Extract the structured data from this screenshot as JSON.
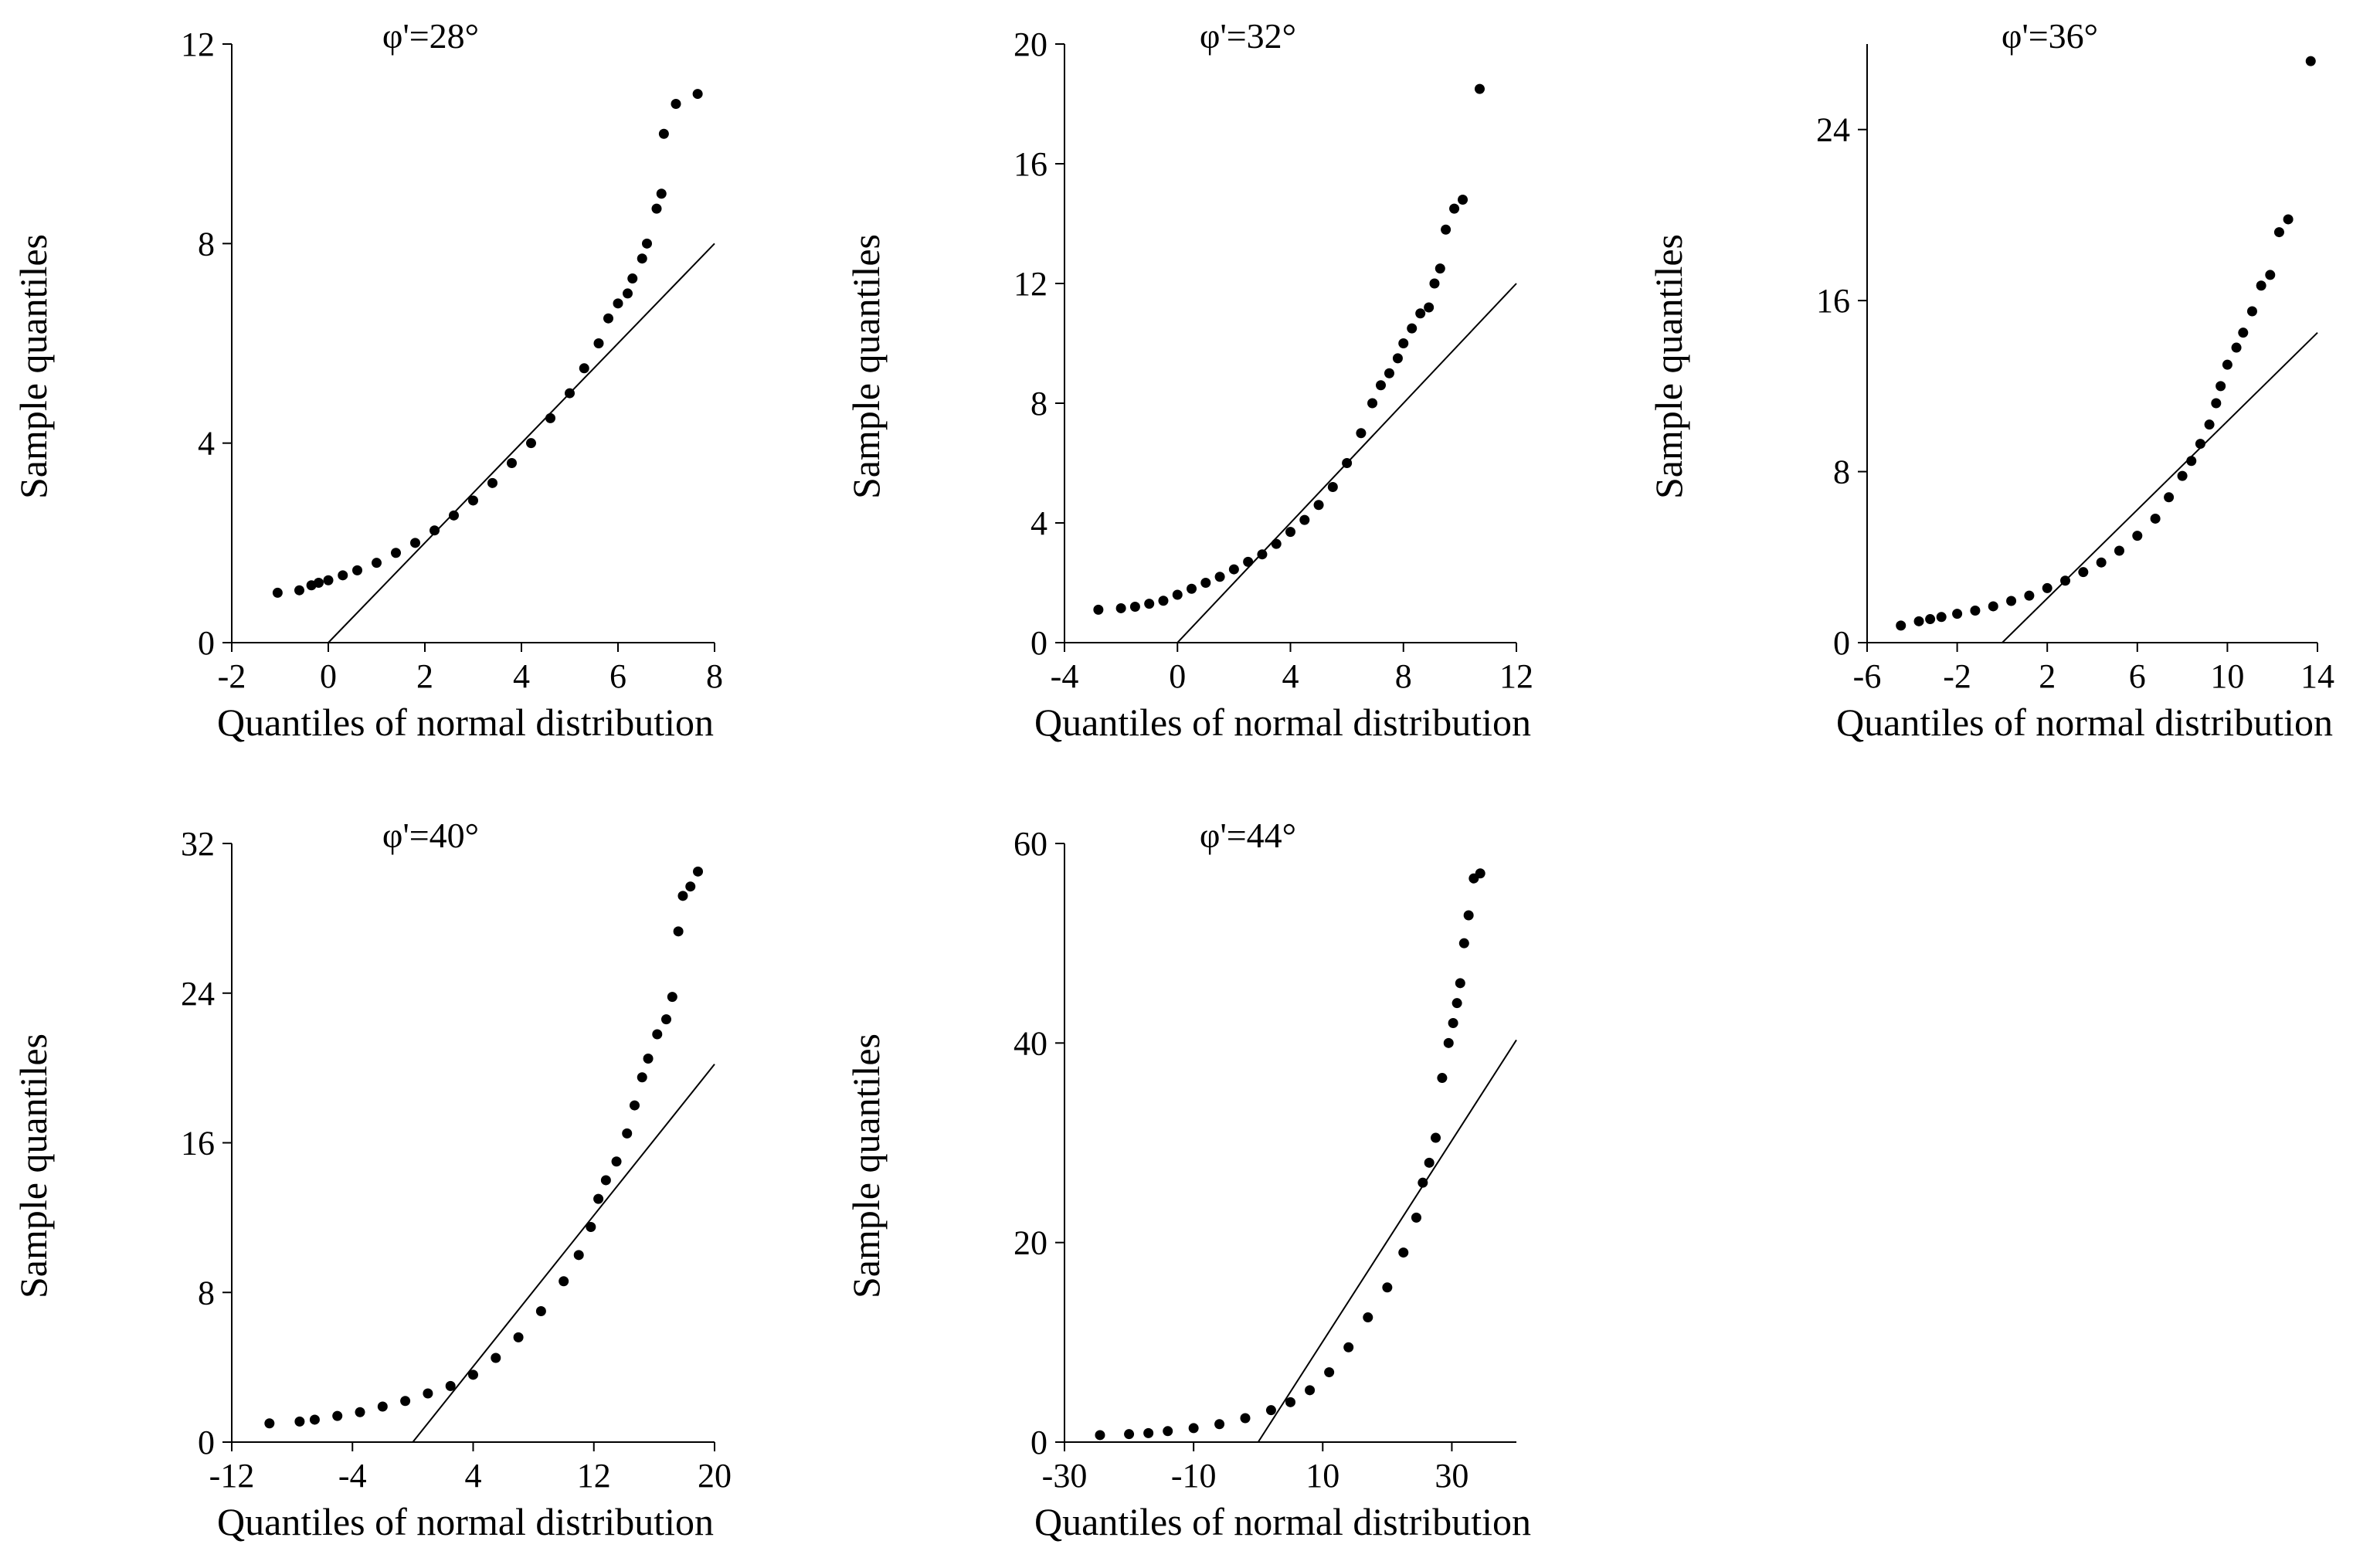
{
  "figure": {
    "description_free": true
  },
  "chart_data": [
    {
      "type": "scatter",
      "title": "φ'=28°",
      "xlabel": "Quantiles of normal distribution",
      "ylabel": "Sample quantiles",
      "xlim": [
        -2,
        8
      ],
      "ylim": [
        0,
        12
      ],
      "xticks": [
        -2,
        0,
        2,
        4,
        6,
        8
      ],
      "yticks": [
        0,
        4,
        8,
        12
      ],
      "reference_line": {
        "x": [
          0,
          8
        ],
        "y": [
          0,
          8
        ]
      },
      "series": [
        {
          "name": "sample",
          "points": [
            [
              -1.05,
              1.0
            ],
            [
              -0.6,
              1.05
            ],
            [
              -0.35,
              1.15
            ],
            [
              -0.2,
              1.2
            ],
            [
              0,
              1.25
            ],
            [
              0.3,
              1.35
            ],
            [
              0.6,
              1.45
            ],
            [
              1.0,
              1.6
            ],
            [
              1.4,
              1.8
            ],
            [
              1.8,
              2.0
            ],
            [
              2.2,
              2.25
            ],
            [
              2.6,
              2.55
            ],
            [
              3.0,
              2.85
            ],
            [
              3.4,
              3.2
            ],
            [
              3.8,
              3.6
            ],
            [
              4.2,
              4.0
            ],
            [
              4.6,
              4.5
            ],
            [
              5.0,
              5.0
            ],
            [
              5.3,
              5.5
            ],
            [
              5.6,
              6.0
            ],
            [
              5.8,
              6.5
            ],
            [
              6.0,
              6.8
            ],
            [
              6.2,
              7.0
            ],
            [
              6.3,
              7.3
            ],
            [
              6.5,
              7.7
            ],
            [
              6.6,
              8.0
            ],
            [
              6.8,
              8.7
            ],
            [
              6.9,
              9.0
            ],
            [
              6.95,
              10.2
            ],
            [
              7.2,
              10.8
            ],
            [
              7.65,
              11.0
            ]
          ]
        }
      ]
    },
    {
      "type": "scatter",
      "title": "φ'=32°",
      "xlabel": "Quantiles of normal distribution",
      "ylabel": "Sample quantiles",
      "xlim": [
        -4,
        12
      ],
      "ylim": [
        0,
        20
      ],
      "xticks": [
        -4,
        0,
        4,
        8,
        12
      ],
      "yticks": [
        0,
        4,
        8,
        12,
        16,
        20
      ],
      "reference_line": {
        "x": [
          0,
          12
        ],
        "y": [
          0,
          12
        ]
      },
      "series": [
        {
          "name": "sample",
          "points": [
            [
              -2.8,
              1.1
            ],
            [
              -2.0,
              1.15
            ],
            [
              -1.5,
              1.2
            ],
            [
              -1.0,
              1.3
            ],
            [
              -0.5,
              1.4
            ],
            [
              0,
              1.6
            ],
            [
              0.5,
              1.8
            ],
            [
              1.0,
              2.0
            ],
            [
              1.5,
              2.2
            ],
            [
              2.0,
              2.45
            ],
            [
              2.5,
              2.7
            ],
            [
              3.0,
              2.95
            ],
            [
              3.5,
              3.3
            ],
            [
              4.0,
              3.7
            ],
            [
              4.5,
              4.1
            ],
            [
              5.0,
              4.6
            ],
            [
              5.5,
              5.2
            ],
            [
              6.0,
              6.0
            ],
            [
              6.5,
              7.0
            ],
            [
              6.9,
              8.0
            ],
            [
              7.2,
              8.6
            ],
            [
              7.5,
              9.0
            ],
            [
              7.8,
              9.5
            ],
            [
              8.0,
              10.0
            ],
            [
              8.3,
              10.5
            ],
            [
              8.6,
              11.0
            ],
            [
              8.9,
              11.2
            ],
            [
              9.1,
              12.0
            ],
            [
              9.3,
              12.5
            ],
            [
              9.5,
              13.8
            ],
            [
              9.8,
              14.5
            ],
            [
              10.1,
              14.8
            ],
            [
              10.7,
              18.5
            ]
          ]
        }
      ]
    },
    {
      "type": "scatter",
      "title": "φ'=36°",
      "xlabel": "Quantiles of normal distribution",
      "ylabel": "Sample quantiles",
      "xlim": [
        -6,
        14
      ],
      "ylim": [
        0,
        28
      ],
      "xticks": [
        -6,
        -2,
        2,
        6,
        10,
        14
      ],
      "yticks": [
        0,
        8,
        16,
        24
      ],
      "reference_line": {
        "x": [
          0,
          14
        ],
        "y": [
          0,
          14.5
        ]
      },
      "series": [
        {
          "name": "sample",
          "points": [
            [
              -4.5,
              0.8
            ],
            [
              -3.7,
              1.0
            ],
            [
              -3.2,
              1.1
            ],
            [
              -2.7,
              1.2
            ],
            [
              -2.0,
              1.35
            ],
            [
              -1.2,
              1.5
            ],
            [
              -0.4,
              1.7
            ],
            [
              0.4,
              1.95
            ],
            [
              1.2,
              2.2
            ],
            [
              2.0,
              2.55
            ],
            [
              2.8,
              2.9
            ],
            [
              3.6,
              3.3
            ],
            [
              4.4,
              3.75
            ],
            [
              5.2,
              4.3
            ],
            [
              6.0,
              5.0
            ],
            [
              6.8,
              5.8
            ],
            [
              7.4,
              6.8
            ],
            [
              8.0,
              7.8
            ],
            [
              8.4,
              8.5
            ],
            [
              8.8,
              9.3
            ],
            [
              9.2,
              10.2
            ],
            [
              9.5,
              11.2
            ],
            [
              9.7,
              12.0
            ],
            [
              10.0,
              13.0
            ],
            [
              10.4,
              13.8
            ],
            [
              10.7,
              14.5
            ],
            [
              11.1,
              15.5
            ],
            [
              11.5,
              16.7
            ],
            [
              11.9,
              17.2
            ],
            [
              12.3,
              19.2
            ],
            [
              12.7,
              19.8
            ],
            [
              13.7,
              27.2
            ]
          ]
        }
      ]
    },
    {
      "type": "scatter",
      "title": "φ'=40°",
      "xlabel": "Quantiles of normal distribution",
      "ylabel": "Sample quantiles",
      "xlim": [
        -12,
        20
      ],
      "ylim": [
        0,
        32
      ],
      "xticks": [
        -12,
        -4,
        4,
        12,
        20
      ],
      "yticks": [
        0,
        8,
        16,
        24,
        32
      ],
      "reference_line": {
        "x": [
          0,
          20
        ],
        "y": [
          0,
          20.2
        ]
      },
      "series": [
        {
          "name": "sample",
          "points": [
            [
              -9.5,
              1.0
            ],
            [
              -7.5,
              1.1
            ],
            [
              -6.5,
              1.2
            ],
            [
              -5.0,
              1.4
            ],
            [
              -3.5,
              1.6
            ],
            [
              -2.0,
              1.9
            ],
            [
              -0.5,
              2.2
            ],
            [
              1.0,
              2.6
            ],
            [
              2.5,
              3.0
            ],
            [
              4.0,
              3.6
            ],
            [
              5.5,
              4.5
            ],
            [
              7.0,
              5.6
            ],
            [
              8.5,
              7.0
            ],
            [
              10.0,
              8.6
            ],
            [
              11.0,
              10.0
            ],
            [
              11.8,
              11.5
            ],
            [
              12.3,
              13.0
            ],
            [
              12.8,
              14.0
            ],
            [
              13.5,
              15.0
            ],
            [
              14.2,
              16.5
            ],
            [
              14.7,
              18.0
            ],
            [
              15.2,
              19.5
            ],
            [
              15.6,
              20.5
            ],
            [
              16.2,
              21.8
            ],
            [
              16.8,
              22.6
            ],
            [
              17.2,
              23.8
            ],
            [
              17.6,
              27.3
            ],
            [
              17.9,
              29.2
            ],
            [
              18.4,
              29.7
            ],
            [
              18.9,
              30.5
            ]
          ]
        }
      ]
    },
    {
      "type": "scatter",
      "title": "φ'=44°",
      "xlabel": "Quantiles of normal distribution",
      "ylabel": "Sample quantiles",
      "xlim": [
        -30,
        40
      ],
      "ylim": [
        0,
        60
      ],
      "xticks": [
        -30,
        -10,
        10,
        30
      ],
      "yticks": [
        0,
        20,
        40,
        60
      ],
      "reference_line": {
        "x": [
          0,
          40
        ],
        "y": [
          0,
          40.3
        ]
      },
      "series": [
        {
          "name": "sample",
          "points": [
            [
              -24.5,
              0.7
            ],
            [
              -20.0,
              0.8
            ],
            [
              -17.0,
              0.9
            ],
            [
              -14.0,
              1.1
            ],
            [
              -10.0,
              1.4
            ],
            [
              -6.0,
              1.8
            ],
            [
              -2.0,
              2.4
            ],
            [
              2.0,
              3.2
            ],
            [
              5.0,
              4.0
            ],
            [
              8.0,
              5.2
            ],
            [
              11.0,
              7.0
            ],
            [
              14.0,
              9.5
            ],
            [
              17.0,
              12.5
            ],
            [
              20.0,
              15.5
            ],
            [
              22.5,
              19.0
            ],
            [
              24.5,
              22.5
            ],
            [
              25.5,
              26.0
            ],
            [
              26.5,
              28.0
            ],
            [
              27.5,
              30.5
            ],
            [
              28.5,
              36.5
            ],
            [
              29.5,
              40.0
            ],
            [
              30.2,
              42.0
            ],
            [
              30.8,
              44.0
            ],
            [
              31.3,
              46.0
            ],
            [
              31.9,
              50.0
            ],
            [
              32.6,
              52.8
            ],
            [
              33.4,
              56.5
            ],
            [
              34.4,
              57.0
            ]
          ]
        }
      ]
    }
  ]
}
